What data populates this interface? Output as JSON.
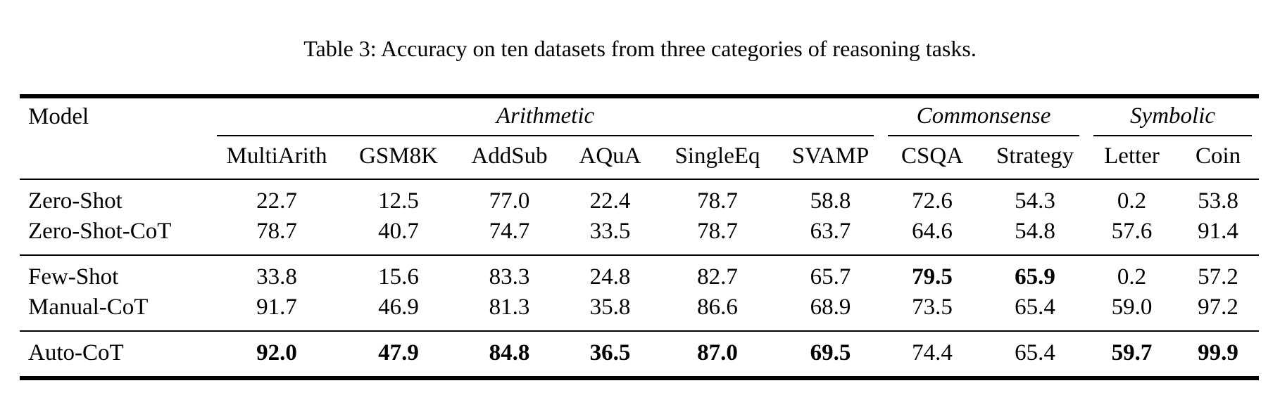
{
  "caption": "Table 3: Accuracy on ten datasets from three categories of reasoning tasks.",
  "table": {
    "model_header": "Model",
    "groups": [
      {
        "label": "Arithmetic",
        "span": 6
      },
      {
        "label": "Commonsense",
        "span": 2
      },
      {
        "label": "Symbolic",
        "span": 2
      }
    ],
    "columns": [
      "MultiArith",
      "GSM8K",
      "AddSub",
      "AQuA",
      "SingleEq",
      "SVAMP",
      "CSQA",
      "Strategy",
      "Letter",
      "Coin"
    ],
    "sections": [
      {
        "rows": [
          {
            "model": "Zero-Shot",
            "values": [
              "22.7",
              "12.5",
              "77.0",
              "22.4",
              "78.7",
              "58.8",
              "72.6",
              "54.3",
              "0.2",
              "53.8"
            ],
            "bold_indices": []
          },
          {
            "model": "Zero-Shot-CoT",
            "values": [
              "78.7",
              "40.7",
              "74.7",
              "33.5",
              "78.7",
              "63.7",
              "64.6",
              "54.8",
              "57.6",
              "91.4"
            ],
            "bold_indices": []
          }
        ]
      },
      {
        "rows": [
          {
            "model": "Few-Shot",
            "values": [
              "33.8",
              "15.6",
              "83.3",
              "24.8",
              "82.7",
              "65.7",
              "79.5",
              "65.9",
              "0.2",
              "57.2"
            ],
            "bold_indices": [
              6,
              7
            ]
          },
          {
            "model": "Manual-CoT",
            "values": [
              "91.7",
              "46.9",
              "81.3",
              "35.8",
              "86.6",
              "68.9",
              "73.5",
              "65.4",
              "59.0",
              "97.2"
            ],
            "bold_indices": []
          }
        ]
      },
      {
        "rows": [
          {
            "model": "Auto-CoT",
            "values": [
              "92.0",
              "47.9",
              "84.8",
              "36.5",
              "87.0",
              "69.5",
              "74.4",
              "65.4",
              "59.7",
              "99.9"
            ],
            "bold_indices": [
              0,
              1,
              2,
              3,
              4,
              5,
              8,
              9
            ]
          }
        ]
      }
    ]
  },
  "colors": {
    "text": "#000000",
    "background": "#ffffff",
    "rule": "#000000"
  }
}
